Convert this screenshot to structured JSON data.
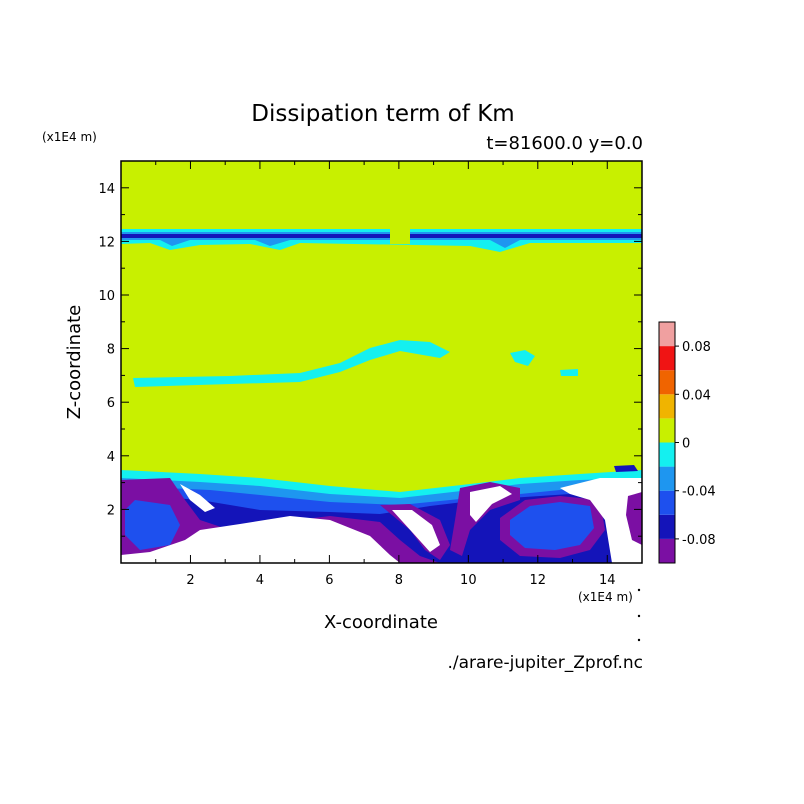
{
  "chart_data": {
    "type": "heatmap",
    "title": "Dissipation term of Km",
    "subtitle": "t=81600.0 y=0.0",
    "xlabel": "X-coordinate",
    "ylabel": "Z-coordinate",
    "x_unit": "(x1E4 m)",
    "y_unit": "(x1E4 m)",
    "xlim": [
      0,
      15
    ],
    "ylim": [
      0,
      15
    ],
    "x_ticks": [
      2,
      4,
      6,
      8,
      10,
      12,
      14
    ],
    "y_ticks": [
      2,
      4,
      6,
      8,
      10,
      12,
      14
    ],
    "x_tick_labels": [
      "2",
      "4",
      "6",
      "8",
      "10",
      "12",
      "14"
    ],
    "y_tick_labels": [
      "2",
      "4",
      "6",
      "8",
      "10",
      "12",
      "14"
    ],
    "colorbar": {
      "levels": [
        -0.1,
        -0.08,
        -0.06,
        -0.04,
        -0.02,
        0,
        0.02,
        0.04,
        0.06,
        0.08,
        0.1
      ],
      "colors": [
        "#7b0fa3",
        "#1414b9",
        "#1e50ee",
        "#1e96f0",
        "#14f0f0",
        "#c8f000",
        "#f0b400",
        "#f06400",
        "#f01414",
        "#f0a0a0"
      ],
      "labels": [
        "0.08",
        "0.04",
        "0",
        "-0.04",
        "-0.08"
      ],
      "label_values": [
        0.08,
        0.04,
        0,
        -0.04,
        -0.08
      ]
    },
    "source": "./arare-jupiter_Zprof.nc"
  }
}
